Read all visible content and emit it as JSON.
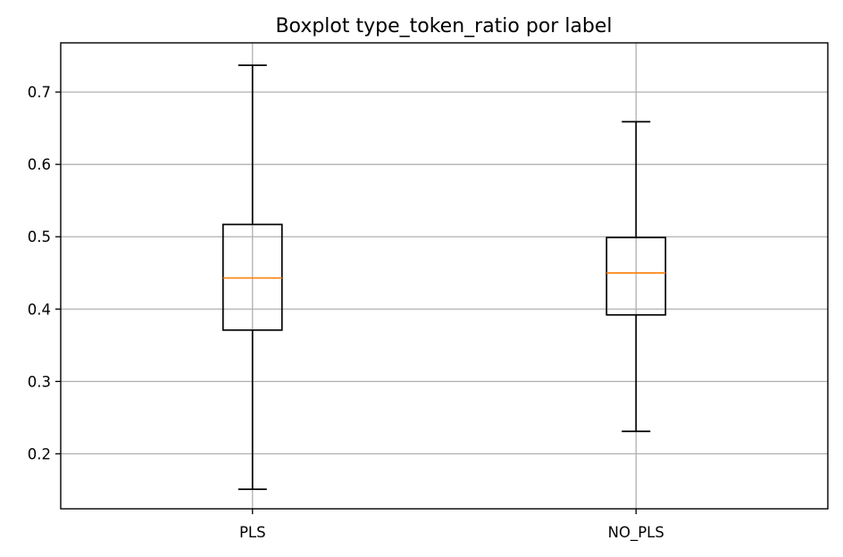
{
  "chart_data": {
    "type": "box",
    "title": "Boxplot type_token_ratio por label",
    "xlabel": "",
    "ylabel": "",
    "categories": [
      "PLS",
      "NO_PLS"
    ],
    "boxes": [
      {
        "category": "PLS",
        "whisker_low": 0.151,
        "q1": 0.371,
        "median": 0.443,
        "q3": 0.517,
        "whisker_high": 0.737
      },
      {
        "category": "NO_PLS",
        "whisker_low": 0.231,
        "q1": 0.392,
        "median": 0.45,
        "q3": 0.499,
        "whisker_high": 0.659
      }
    ],
    "ylim": [
      0.124,
      0.768
    ],
    "yticks": [
      0.2,
      0.3,
      0.4,
      0.5,
      0.6,
      0.7
    ],
    "ytick_labels": [
      "0.2",
      "0.3",
      "0.4",
      "0.5",
      "0.6",
      "0.7"
    ],
    "grid": true,
    "colors": {
      "box": "#000000",
      "median": "#ff7f0e",
      "grid": "#b0b0b0"
    }
  }
}
